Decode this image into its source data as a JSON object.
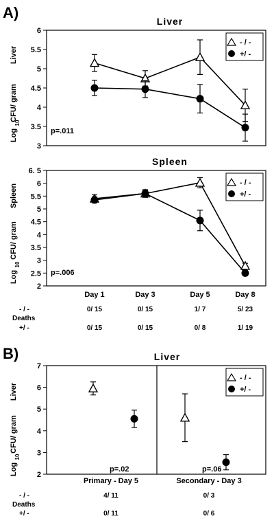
{
  "figure": {
    "A": {
      "letter": "A)",
      "x_labels": [
        "Day 1",
        "Day 3",
        "Day 5",
        "Day 8"
      ],
      "deaths_label": "Deaths",
      "deaths": [
        {
          "genotype": "- / -",
          "values": [
            "0/ 15",
            "0/ 15",
            "1/ 7",
            "5/ 23"
          ]
        },
        {
          "genotype": "+/ -",
          "values": [
            "0/ 15",
            "0/ 15",
            "0/ 8",
            "1/ 19"
          ]
        }
      ]
    },
    "B": {
      "letter": "B)",
      "deaths_label": "Deaths",
      "deaths": [
        {
          "genotype": "- / -",
          "values": [
            "4/ 11",
            "0/ 3"
          ]
        },
        {
          "genotype": "+/ -",
          "values": [
            "0/ 11",
            "0/ 6"
          ]
        }
      ]
    }
  },
  "chart_data": [
    {
      "id": "A-liver",
      "type": "line",
      "title": "Liver",
      "ylabel": [
        "Liver",
        "CFU/ gram",
        "Log",
        "10"
      ],
      "ylim": [
        3,
        6
      ],
      "yticks": [
        "3",
        "3.5",
        "4",
        "4.5",
        "5",
        "5.5",
        "6"
      ],
      "categories": [
        "Day 1",
        "Day 3",
        "Day 5",
        "Day 8"
      ],
      "pvalue": "p=.011",
      "legend_position": "top-right",
      "series": [
        {
          "name": "- / -",
          "marker": "triangle",
          "values": [
            5.15,
            4.75,
            5.3,
            4.05
          ],
          "err": [
            0.22,
            0.2,
            0.45,
            0.42
          ]
        },
        {
          "name": "+/ -",
          "marker": "circle",
          "values": [
            4.5,
            4.47,
            4.22,
            3.47
          ],
          "err": [
            0.2,
            0.22,
            0.37,
            0.35
          ]
        }
      ]
    },
    {
      "id": "A-spleen",
      "type": "line",
      "title": "Spleen",
      "ylabel": [
        "Spleen",
        "CFU/ gram",
        "Log",
        "10"
      ],
      "ylim": [
        2,
        6.5
      ],
      "yticks": [
        "2",
        "2.5",
        "3",
        "3.5",
        "4",
        "4.5",
        "5",
        "5.5",
        "6",
        "6. 5"
      ],
      "categories": [
        "Day 1",
        "Day 3",
        "Day 5",
        "Day 8"
      ],
      "pvalue": "p=.006",
      "legend_position": "top-right",
      "series": [
        {
          "name": "- / -",
          "marker": "triangle",
          "values": [
            5.4,
            5.6,
            6.02,
            2.78
          ],
          "err": [
            0.15,
            0.15,
            0.2,
            0.1
          ]
        },
        {
          "name": "+/ -",
          "marker": "circle",
          "values": [
            5.35,
            5.6,
            4.55,
            2.5
          ],
          "err": [
            0.12,
            0.12,
            0.4,
            0.1
          ]
        }
      ]
    },
    {
      "id": "B-liver",
      "type": "scatter",
      "title": "Liver",
      "ylabel": [
        "Liver",
        "CFU/ gram",
        "Log",
        "10"
      ],
      "ylim": [
        2,
        7
      ],
      "yticks": [
        "2",
        "3",
        "4",
        "5",
        "6",
        "7"
      ],
      "groups": [
        {
          "label": "Primary  -  Day  5",
          "pvalue": "p=.02"
        },
        {
          "label": "Secondary  -   Day  3",
          "pvalue": "p=.06"
        }
      ],
      "legend_position": "top-right",
      "series": [
        {
          "name": "- / -",
          "marker": "triangle",
          "values": [
            5.95,
            4.6
          ],
          "err": [
            0.3,
            1.1
          ]
        },
        {
          "name": "+/ -",
          "marker": "circle",
          "values": [
            4.55,
            2.55
          ],
          "err": [
            0.4,
            0.35
          ]
        }
      ]
    }
  ]
}
